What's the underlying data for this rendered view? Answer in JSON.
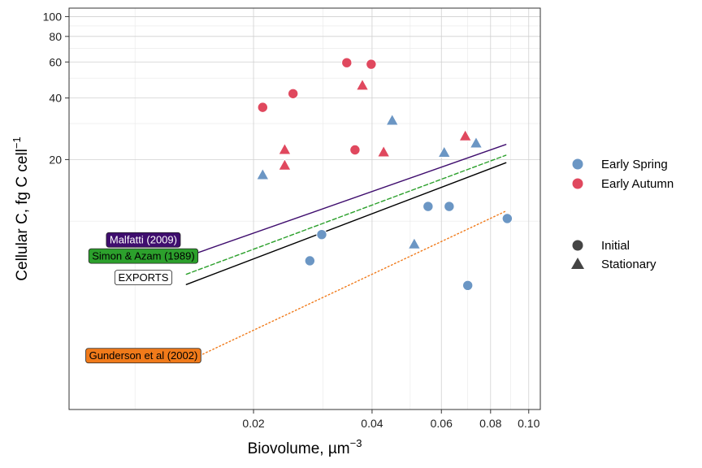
{
  "chart_data": {
    "type": "scatter",
    "xlabel": "Biovolume, µm",
    "xlabel_sup": "−3",
    "ylabel": "Cellular C, fg C cell",
    "ylabel_sup": "−1",
    "x_scale": "log",
    "y_scale": "log",
    "xlim": [
      0.0068,
      0.107
    ],
    "ylim": [
      1.2,
      110
    ],
    "x_ticks": [
      0.02,
      0.04,
      0.06,
      0.08,
      0.1
    ],
    "x_tick_labels": [
      "0.02",
      "0.04",
      "0.06",
      "0.08",
      "0.10"
    ],
    "y_ticks": [
      20,
      40,
      60,
      80,
      100
    ],
    "y_tick_labels": [
      "20",
      "40",
      "60",
      "80",
      "100"
    ],
    "grid": true,
    "legend_position": "right",
    "color_legend": [
      {
        "label": "Early Spring",
        "color": "#6b96c4"
      },
      {
        "label": "Early Autumn",
        "color": "#e0485e"
      }
    ],
    "shape_legend": [
      {
        "label": "Initial",
        "shape": "circle"
      },
      {
        "label": "Stationary",
        "shape": "triangle"
      }
    ],
    "series": [
      {
        "season": "Early Spring",
        "phase": "Initial",
        "color": "#6b96c4",
        "shape": "circle",
        "points": [
          [
            0.0278,
            6.4
          ],
          [
            0.0298,
            8.6
          ],
          [
            0.0555,
            11.8
          ],
          [
            0.0628,
            11.8
          ],
          [
            0.07,
            4.85
          ],
          [
            0.0882,
            10.3
          ]
        ]
      },
      {
        "season": "Early Spring",
        "phase": "Stationary",
        "color": "#6b96c4",
        "shape": "triangle",
        "points": [
          [
            0.0211,
            16.8
          ],
          [
            0.045,
            31.0
          ],
          [
            0.0512,
            7.7
          ],
          [
            0.061,
            21.6
          ],
          [
            0.0735,
            24.0
          ]
        ]
      },
      {
        "season": "Early Autumn",
        "phase": "Initial",
        "color": "#e0485e",
        "shape": "circle",
        "points": [
          [
            0.0211,
            36.0
          ],
          [
            0.0252,
            42.0
          ],
          [
            0.0345,
            59.5
          ],
          [
            0.0362,
            22.3
          ],
          [
            0.0398,
            58.5
          ]
        ]
      },
      {
        "season": "Early Autumn",
        "phase": "Stationary",
        "color": "#e0485e",
        "shape": "triangle",
        "points": [
          [
            0.024,
            22.3
          ],
          [
            0.024,
            18.7
          ],
          [
            0.0378,
            46.0
          ],
          [
            0.0428,
            21.7
          ],
          [
            0.069,
            26.0
          ]
        ]
      }
    ],
    "lines": [
      {
        "label": "Malfatti (2009)",
        "color": "#3f0d6e",
        "dash": "solid",
        "text_color": "#ffffff",
        "x": [
          0.0135,
          0.0875
        ],
        "y": [
          6.7,
          23.7
        ],
        "label_at": [
          0.0105,
          8.1
        ]
      },
      {
        "label": "Simon & Azam (1989)",
        "color": "#2ca02c",
        "dash": "dashed",
        "text_color": "#000000",
        "x": [
          0.0135,
          0.0875
        ],
        "y": [
          5.5,
          21.0
        ],
        "label_at": [
          0.0105,
          6.75
        ]
      },
      {
        "label": "EXPORTS",
        "color": "#000000",
        "dash": "solid",
        "fill": "#ffffff",
        "text_color": "#000000",
        "x": [
          0.0135,
          0.0875
        ],
        "y": [
          4.9,
          19.3
        ],
        "label_at": [
          0.0105,
          5.3
        ]
      },
      {
        "label": "Gunderson et al (2002)",
        "color": "#f07a1a",
        "dash": "dotted",
        "text_color": "#000000",
        "x": [
          0.0135,
          0.0875
        ],
        "y": [
          2.05,
          11.2
        ],
        "label_at": [
          0.0105,
          2.2
        ]
      }
    ]
  }
}
